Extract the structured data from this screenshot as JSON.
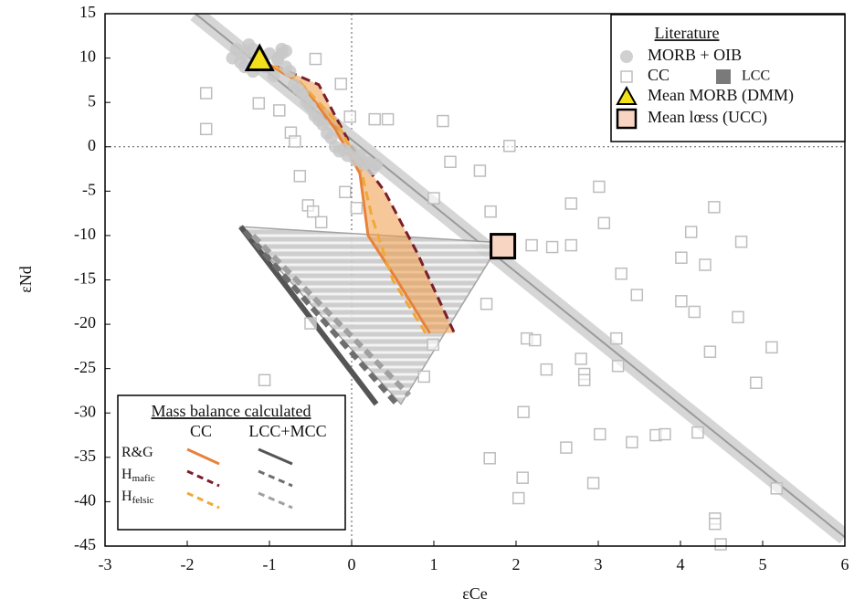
{
  "chart_data": {
    "type": "scatter",
    "x_label": "εCe",
    "y_label": "εNd",
    "xlim": [
      -3,
      6
    ],
    "ylim": [
      -45,
      15
    ],
    "xticks": [
      -3,
      -2,
      -1,
      0,
      1,
      2,
      3,
      4,
      5,
      6
    ],
    "yticks": [
      -45,
      -40,
      -35,
      -30,
      -25,
      -20,
      -15,
      -10,
      -5,
      0,
      5,
      10,
      15
    ],
    "zero_lines": true,
    "legend_title": "Literature",
    "series": [
      {
        "name": "MORB + OIB",
        "color": "#c8c8c8",
        "marker": "circle",
        "x": [
          -1.45,
          -1.4,
          -1.35,
          -1.3,
          -1.25,
          -1.2,
          -1.15,
          -1.05,
          -1.0,
          -0.95,
          -0.9,
          -0.85,
          -0.8,
          -0.75,
          -0.7,
          -0.65,
          -0.6,
          -0.55,
          -0.5,
          -0.45,
          -0.4,
          -0.35,
          -0.3,
          -0.25,
          -0.2,
          -0.15,
          -0.1,
          -0.05,
          0.0,
          0.05,
          0.1,
          0.15,
          0.2,
          0.25,
          0.3,
          -1.3,
          -1.2,
          -0.85,
          -0.8,
          -0.9
        ],
        "values": [
          10,
          11,
          9.5,
          10.5,
          11.5,
          8.5,
          10,
          9,
          10.5,
          8,
          10,
          11,
          9,
          8.5,
          7,
          6.5,
          6,
          5,
          4.5,
          3.5,
          3,
          2.5,
          1.5,
          1,
          0,
          -0.5,
          -0.3,
          -1,
          -0.5,
          -1.5,
          -1,
          -2,
          -1.8,
          -2.5,
          -2,
          9,
          11,
          10.5,
          10.8,
          9.8
        ]
      },
      {
        "name": "CC",
        "color": "#bdbdbd",
        "marker": "open-square",
        "x": [
          -1.77,
          -1.77,
          -1.13,
          -0.88,
          -0.74,
          -0.69,
          -0.63,
          -0.44,
          -0.13,
          -0.02,
          0.28,
          0.44,
          1.11,
          1.2,
          1.56,
          1.92,
          1.0,
          -0.53,
          -0.47,
          -0.37,
          -0.08,
          0.06,
          1.69,
          2.19,
          2.44,
          2.67,
          2.67,
          3.01,
          3.07,
          3.28,
          3.47,
          4.41,
          4.13,
          4.01,
          4.3,
          4.74,
          4.01,
          4.17,
          4.7,
          4.36,
          5.11,
          4.92,
          3.22,
          2.13,
          2.23,
          2.37,
          2.79,
          2.83,
          2.83,
          3.24,
          0.99,
          0.88,
          -1.06,
          -0.5,
          1.64,
          2.09,
          1.68,
          2.08,
          2.03,
          2.61,
          3.02,
          3.41,
          3.7,
          3.81,
          4.21,
          2.94,
          4.42,
          4.42,
          4.49,
          5.17
        ],
        "values": [
          6.05,
          2.0,
          4.9,
          4.1,
          1.6,
          0.6,
          -3.3,
          9.9,
          7.1,
          3.4,
          3.1,
          3.1,
          2.9,
          -1.7,
          -2.7,
          0.1,
          -5.8,
          -6.6,
          -7.3,
          -8.5,
          -5.1,
          -6.9,
          -7.3,
          -11.1,
          -11.3,
          -6.4,
          -11.1,
          -4.5,
          -8.6,
          -14.3,
          -16.7,
          -6.8,
          -9.6,
          -12.5,
          -13.3,
          -10.7,
          -17.4,
          -18.6,
          -19.2,
          -23.1,
          -22.6,
          -26.6,
          -21.6,
          -21.6,
          -21.8,
          -25.1,
          -23.9,
          -25.6,
          -26.3,
          -24.7,
          -22.3,
          -25.9,
          -26.3,
          -19.9,
          -17.7,
          -29.9,
          -35.1,
          -37.3,
          -39.6,
          -33.9,
          -32.4,
          -33.3,
          -32.5,
          -32.4,
          -32.2,
          -37.9,
          -41.9,
          -42.5,
          -44.8,
          -38.5
        ]
      },
      {
        "name": "LCC",
        "color": "#7a7a7a",
        "marker": "square",
        "x": [],
        "values": []
      },
      {
        "name": "Mean MORB (DMM)",
        "color": "#f2e01a",
        "marker": "triangle",
        "x": [
          -1.12
        ],
        "values": [
          9.8
        ]
      },
      {
        "name": "Mean lœss (UCC)",
        "color": "#f8d5c2",
        "marker": "big-square",
        "x": [
          1.84
        ],
        "values": [
          -11.2
        ]
      }
    ],
    "regression": {
      "color": "#9a9a9a",
      "x": [
        -1.9,
        6
      ],
      "values": [
        15,
        -44
      ]
    },
    "lcc_field": {
      "color": "#9a9a9a",
      "x": [
        -1.35,
        1.81,
        0.6
      ],
      "values": [
        -9,
        -10.8,
        -29
      ]
    },
    "cc_field": {
      "color": "#ee9a45",
      "x": [
        -1.1,
        -0.6,
        -0.2,
        0.1,
        0.2,
        0.55,
        0.95,
        1.25,
        0.8,
        0.4,
        0.0,
        -0.4
      ],
      "values": [
        9.8,
        7,
        2,
        -3,
        -10,
        -15,
        -21,
        -21,
        -12,
        -5,
        0,
        7
      ]
    },
    "legend2": {
      "title": "Mass balance calculated",
      "columns": [
        "CC",
        "LCC+MCC"
      ],
      "rows": [
        {
          "text": "R&G",
          "cc_color": "#e8823a",
          "lcc_color": "#555555",
          "dash": false,
          "cc_x": [
            -1.1,
            -0.6,
            -0.2,
            0.1,
            0.2,
            0.55,
            0.95
          ],
          "cc_y": [
            9.8,
            7,
            2,
            -3,
            -10,
            -15,
            -21
          ],
          "lcc_x": [
            -1.35,
            0.3
          ],
          "lcc_y": [
            -9,
            -29
          ]
        },
        {
          "text": "H",
          "sub": "mafic",
          "cc_color": "#7a1e2a",
          "lcc_color": "#6e6e6e",
          "dash": true,
          "cc_x": [
            -1.1,
            -0.4,
            0.0,
            0.4,
            0.8,
            1.25
          ],
          "cc_y": [
            9.8,
            7,
            0,
            -5,
            -12,
            -21
          ],
          "lcc_x": [
            -1.3,
            0.55
          ],
          "lcc_y": [
            -9.5,
            -29
          ]
        },
        {
          "text": "H",
          "sub": "felsic",
          "cc_color": "#f0a838",
          "lcc_color": "#a0a0a0",
          "dash": true,
          "cc_x": [
            -1.1,
            -0.7,
            -0.2,
            0.1,
            0.25,
            0.5,
            0.9
          ],
          "cc_y": [
            9.8,
            8,
            3,
            -2,
            -8,
            -15,
            -21
          ],
          "lcc_x": [
            -1.2,
            0.7
          ],
          "lcc_y": [
            -10,
            -28
          ]
        }
      ]
    }
  }
}
